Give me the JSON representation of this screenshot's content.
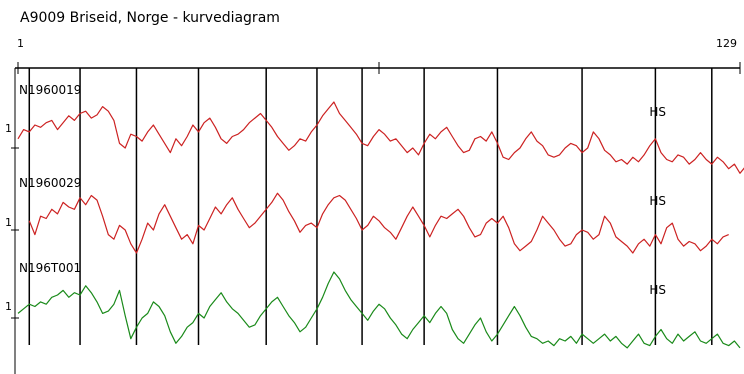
{
  "chart_data": {
    "type": "line",
    "title": "A9009 Briseid, Norge - kurvediagram",
    "xlim": [
      1,
      129
    ],
    "x_tick_labels": [
      "1",
      "129"
    ],
    "marker_x": [
      3,
      12,
      22,
      33,
      45,
      54,
      62,
      73,
      86,
      101,
      114,
      124
    ],
    "series": [
      {
        "name": "N1960019",
        "color": "#cc2222",
        "y_label": "1",
        "hs_label": "HS",
        "hs_x": 114,
        "x_start": 1,
        "values": [
          0.2,
          0.4,
          0.35,
          0.5,
          0.45,
          0.55,
          0.6,
          0.4,
          0.55,
          0.7,
          0.6,
          0.75,
          0.8,
          0.65,
          0.72,
          0.9,
          0.8,
          0.6,
          0.1,
          0.0,
          0.3,
          0.25,
          0.15,
          0.35,
          0.5,
          0.3,
          0.1,
          -0.1,
          0.2,
          0.05,
          0.25,
          0.5,
          0.35,
          0.55,
          0.65,
          0.45,
          0.2,
          0.1,
          0.25,
          0.3,
          0.4,
          0.55,
          0.65,
          0.75,
          0.6,
          0.45,
          0.25,
          0.1,
          -0.05,
          0.05,
          0.2,
          0.15,
          0.35,
          0.5,
          0.7,
          0.85,
          1.0,
          0.75,
          0.6,
          0.45,
          0.3,
          0.1,
          0.05,
          0.25,
          0.4,
          0.3,
          0.15,
          0.2,
          0.05,
          -0.1,
          0.0,
          -0.15,
          0.1,
          0.3,
          0.2,
          0.35,
          0.45,
          0.25,
          0.05,
          -0.1,
          -0.05,
          0.2,
          0.25,
          0.15,
          0.35,
          0.1,
          -0.2,
          -0.25,
          -0.1,
          0.0,
          0.2,
          0.35,
          0.15,
          0.05,
          -0.15,
          -0.2,
          -0.15,
          0.0,
          0.1,
          0.05,
          -0.1,
          0.0,
          0.35,
          0.2,
          -0.05,
          -0.15,
          -0.3,
          -0.25,
          -0.35,
          -0.2,
          -0.3,
          -0.15,
          0.05,
          0.2,
          -0.1,
          -0.25,
          -0.3,
          -0.15,
          -0.2,
          -0.35,
          -0.25,
          -0.1,
          -0.25,
          -0.35,
          -0.2,
          -0.3,
          -0.45,
          -0.35,
          -0.55,
          -0.4
        ]
      },
      {
        "name": "N1960029",
        "color": "#cc2222",
        "y_label": "1",
        "hs_label": "HS",
        "hs_x": 114,
        "x_start": 3,
        "values": [
          0.2,
          -0.1,
          0.3,
          0.25,
          0.45,
          0.35,
          0.6,
          0.5,
          0.45,
          0.7,
          0.55,
          0.75,
          0.65,
          0.3,
          -0.1,
          -0.2,
          0.1,
          0.0,
          -0.3,
          -0.5,
          -0.2,
          0.15,
          0.0,
          0.35,
          0.55,
          0.3,
          0.05,
          -0.2,
          -0.1,
          -0.3,
          0.1,
          0.0,
          0.25,
          0.5,
          0.35,
          0.55,
          0.7,
          0.45,
          0.25,
          0.05,
          0.15,
          0.3,
          0.45,
          0.6,
          0.8,
          0.65,
          0.4,
          0.2,
          -0.05,
          0.1,
          0.15,
          0.05,
          0.35,
          0.55,
          0.7,
          0.75,
          0.65,
          0.45,
          0.25,
          0.0,
          0.1,
          0.3,
          0.2,
          0.05,
          -0.05,
          -0.2,
          0.05,
          0.3,
          0.5,
          0.3,
          0.1,
          -0.15,
          0.1,
          0.3,
          0.25,
          0.35,
          0.45,
          0.3,
          0.05,
          -0.15,
          -0.1,
          0.15,
          0.25,
          0.15,
          0.3,
          0.05,
          -0.3,
          -0.45,
          -0.35,
          -0.25,
          0.0,
          0.3,
          0.15,
          0.0,
          -0.2,
          -0.35,
          -0.3,
          -0.1,
          0.0,
          -0.05,
          -0.2,
          -0.1,
          0.3,
          0.15,
          -0.15,
          -0.25,
          -0.35,
          -0.5,
          -0.3,
          -0.2,
          -0.35,
          -0.1,
          -0.3,
          0.05,
          0.15,
          -0.2,
          -0.35,
          -0.25,
          -0.3,
          -0.45,
          -0.35,
          -0.2,
          -0.3,
          -0.15,
          -0.1
        ]
      },
      {
        "name": "N196T001",
        "color": "#1a8a1a",
        "y_label": "1",
        "hs_label": "HS",
        "hs_x": 114,
        "x_start": 1,
        "values": [
          0.1,
          0.2,
          0.3,
          0.25,
          0.35,
          0.3,
          0.45,
          0.5,
          0.6,
          0.45,
          0.55,
          0.5,
          0.7,
          0.55,
          0.35,
          0.1,
          0.15,
          0.3,
          0.6,
          0.05,
          -0.45,
          -0.2,
          0.0,
          0.1,
          0.35,
          0.25,
          0.05,
          -0.3,
          -0.55,
          -0.4,
          -0.2,
          -0.1,
          0.1,
          0.0,
          0.25,
          0.4,
          0.55,
          0.35,
          0.2,
          0.1,
          -0.05,
          -0.2,
          -0.15,
          0.05,
          0.2,
          0.35,
          0.45,
          0.25,
          0.05,
          -0.1,
          -0.3,
          -0.2,
          0.0,
          0.2,
          0.45,
          0.75,
          1.0,
          0.85,
          0.6,
          0.4,
          0.25,
          0.1,
          -0.05,
          0.15,
          0.3,
          0.2,
          0.0,
          -0.15,
          -0.35,
          -0.45,
          -0.25,
          -0.1,
          0.05,
          -0.1,
          0.1,
          0.25,
          0.1,
          -0.25,
          -0.45,
          -0.55,
          -0.35,
          -0.15,
          0.0,
          -0.3,
          -0.5,
          -0.35,
          -0.15,
          0.05,
          0.25,
          0.05,
          -0.2,
          -0.4,
          -0.45,
          -0.55,
          -0.5,
          -0.6,
          -0.45,
          -0.5,
          -0.4,
          -0.55,
          -0.35,
          -0.45,
          -0.55,
          -0.45,
          -0.35,
          -0.5,
          -0.4,
          -0.55,
          -0.65,
          -0.5,
          -0.35,
          -0.55,
          -0.6,
          -0.4,
          -0.25,
          -0.45,
          -0.55,
          -0.35,
          -0.5,
          -0.4,
          -0.3,
          -0.5,
          -0.55,
          -0.45,
          -0.35,
          -0.55,
          -0.6,
          -0.5,
          -0.65
        ]
      }
    ]
  }
}
